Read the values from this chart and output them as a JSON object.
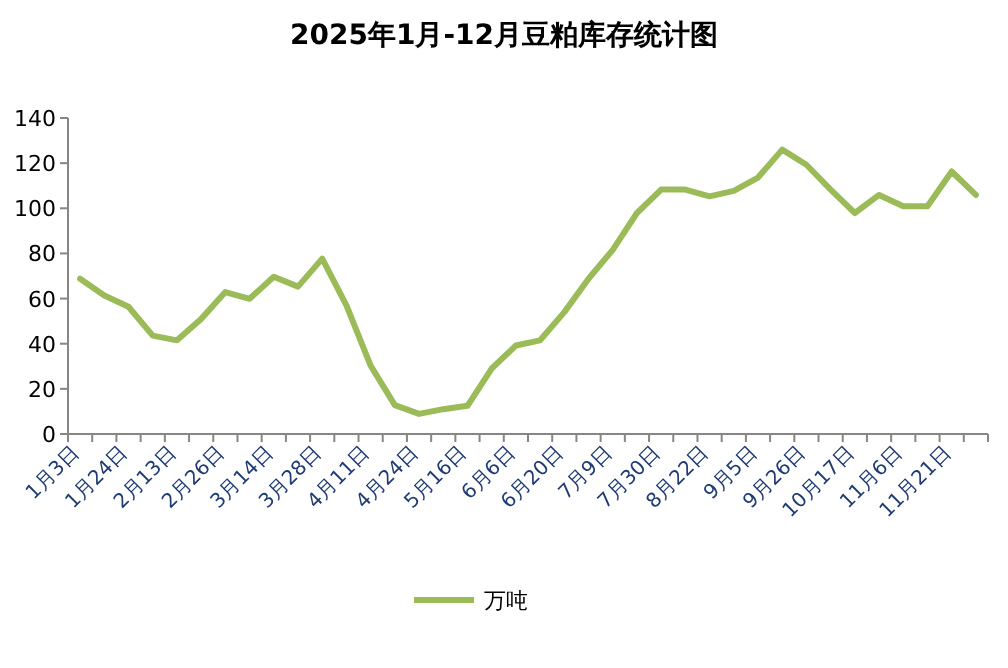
{
  "chart_data": {
    "type": "line",
    "title": "2025年1月-12月豆粕库存统计图",
    "categories": [
      "1月3日",
      null,
      "1月24日",
      null,
      "2月13日",
      null,
      "2月26日",
      null,
      "3月14日",
      null,
      "3月28日",
      null,
      "4月11日",
      null,
      "4月24日",
      null,
      "5月16日",
      null,
      "6月6日",
      null,
      "6月20日",
      null,
      "7月9日",
      null,
      "7月30日",
      null,
      "8月22日",
      null,
      "9月5日",
      null,
      "9月26日",
      null,
      "10月17日",
      null,
      "11月6日",
      null,
      "11月21日",
      null
    ],
    "series": [
      {
        "name": "万吨",
        "color": "#9bbb59",
        "values": [
          68.8,
          61.4,
          56.4,
          43.6,
          41.5,
          51,
          62.9,
          59.9,
          69.7,
          65.3,
          77.7,
          57,
          30.3,
          12.8,
          8.9,
          11,
          12.5,
          29,
          39.2,
          41.5,
          54,
          68.8,
          81.6,
          97.9,
          108.3,
          108.3,
          105.3,
          107.7,
          113.6,
          126,
          119.3,
          108.3,
          97.9,
          105.9,
          100.9,
          100.9,
          116.3,
          105.9
        ]
      }
    ],
    "ylim": [
      0,
      140
    ],
    "yticks": [
      0,
      20,
      40,
      60,
      80,
      100,
      120,
      140
    ],
    "legend": "bottom"
  }
}
